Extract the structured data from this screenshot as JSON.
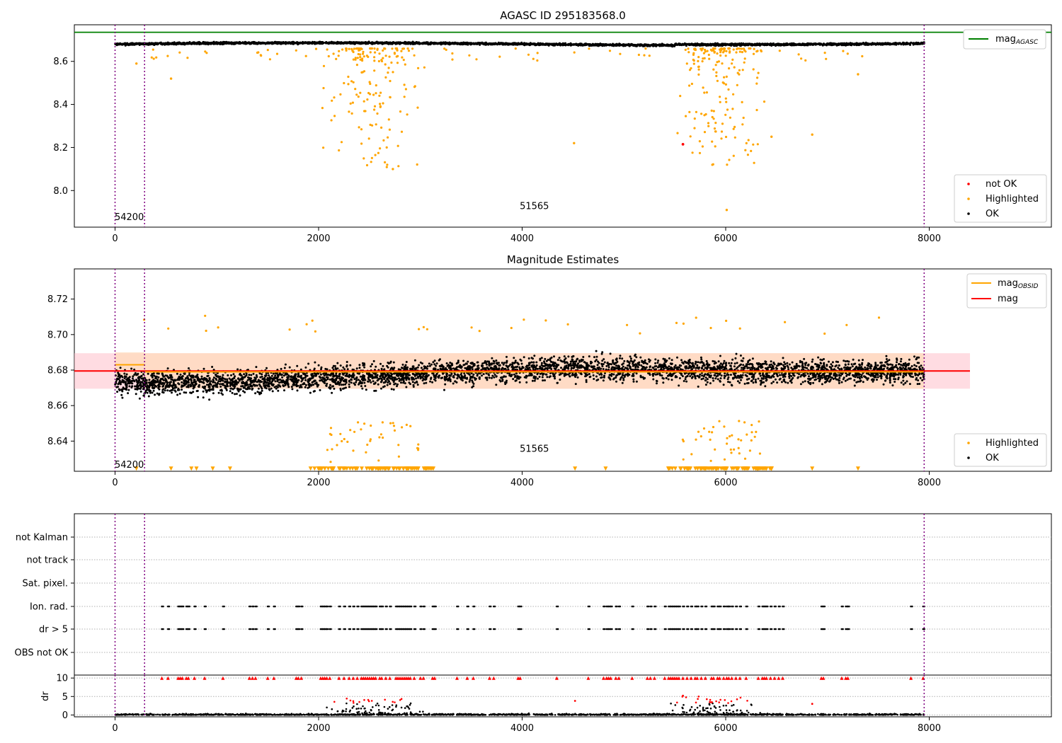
{
  "figure": {
    "title": "AGASC ID 295183568.0"
  },
  "colors": {
    "ok": "#000000",
    "highlighted": "#ffa500",
    "not_ok": "#ff0000",
    "mag_agasc": "#008000",
    "mag_obsid": "#ffa500",
    "mag": "#ff0000",
    "obsid_boundary": "#800080",
    "band_mag": "#ffc0cb",
    "band_obsid": "#ffdab9"
  },
  "chart_data": [
    {
      "type": "scatter",
      "title": "AGASC ID 295183568.0",
      "xlabel": "",
      "ylabel": "",
      "xlim": [
        -400,
        9200
      ],
      "ylim": [
        7.83,
        8.77
      ],
      "xticks": [
        "0",
        "2000",
        "4000",
        "6000",
        "8000"
      ],
      "yticks": [
        "8.0",
        "8.2",
        "8.4",
        "8.6"
      ],
      "mag_agasc": 8.735,
      "obsid_boundaries": [
        0,
        290,
        7950
      ],
      "obsid_labels": [
        {
          "text": "54200",
          "x": 140,
          "y": 7.88
        },
        {
          "text": "51565",
          "x": 4120,
          "y": 7.93
        }
      ],
      "ok_band": {
        "x_range": [
          0,
          7950
        ],
        "mag_min": 8.655,
        "mag_max": 8.705
      },
      "highlighted_clusters": [
        {
          "x_range": [
            1750,
            3300
          ],
          "mag_range": [
            8.1,
            8.66
          ]
        },
        {
          "x_range": [
            5300,
            6600
          ],
          "mag_range": [
            8.1,
            8.66
          ]
        }
      ],
      "highlighted_isolated": [
        {
          "x": 210,
          "y": 8.59
        },
        {
          "x": 550,
          "y": 8.52
        },
        {
          "x": 2730,
          "y": 8.1
        },
        {
          "x": 4510,
          "y": 8.22
        },
        {
          "x": 6010,
          "y": 7.91
        },
        {
          "x": 6450,
          "y": 8.25
        },
        {
          "x": 6850,
          "y": 8.26
        },
        {
          "x": 7300,
          "y": 8.54
        }
      ],
      "not_ok": [
        {
          "x": 5580,
          "y": 8.215
        }
      ],
      "legends": [
        {
          "position": "top-right",
          "entries": [
            "mag_AGASC"
          ]
        },
        {
          "position": "lower-right",
          "entries": [
            "not OK",
            "Highlighted",
            "OK"
          ]
        }
      ]
    },
    {
      "type": "scatter",
      "title": "Magnitude Estimates",
      "xlabel": "",
      "ylabel": "",
      "xlim": [
        -400,
        9200
      ],
      "ylim": [
        8.623,
        8.737
      ],
      "xticks": [
        "0",
        "2000",
        "4000",
        "6000",
        "8000"
      ],
      "yticks": [
        "8.64",
        "8.66",
        "8.68",
        "8.70",
        "8.72"
      ],
      "mag": 8.6795,
      "mag_band": [
        8.6695,
        8.6895
      ],
      "mag_obsid_segments": [
        {
          "x_range": [
            0,
            290
          ],
          "mag": 8.683,
          "band": [
            8.676,
            8.69
          ]
        },
        {
          "x_range": [
            290,
            7950
          ],
          "mag": 8.679,
          "band": [
            8.6695,
            8.6895
          ]
        }
      ],
      "obsid_boundaries": [
        0,
        290,
        7950
      ],
      "obsid_labels": [
        {
          "text": "54200",
          "x": 140,
          "y": 8.627
        },
        {
          "text": "51565",
          "x": 4120,
          "y": 8.636
        }
      ],
      "ok_band": {
        "x_range": [
          0,
          7950
        ],
        "mag_min": 8.65,
        "mag_max": 8.705
      },
      "off_scale_marker_y": 8.6245,
      "legends": [
        {
          "position": "top-right",
          "entries": [
            "mag_OBSID",
            "mag"
          ]
        },
        {
          "position": "lower-right",
          "entries": [
            "Highlighted",
            "OK"
          ]
        }
      ]
    },
    {
      "type": "scatter",
      "title": "",
      "xlabel": "",
      "ylabel": "",
      "xlim": [
        -400,
        9200
      ],
      "xticks": [
        "0",
        "2000",
        "4000",
        "6000",
        "8000"
      ],
      "flag_rows": [
        "not Kalman",
        "not track",
        "Sat. pixel.",
        "Ion. rad.",
        "dr > 5",
        "OBS not OK"
      ],
      "flag_x": [
        460,
        520,
        620,
        640,
        660,
        700,
        720,
        780,
        880,
        1060,
        1320,
        1350,
        1380,
        1500,
        1560,
        1780,
        1800,
        1830,
        2020,
        2040,
        2060,
        2080,
        2110,
        2200,
        2250,
        2300,
        2340,
        2380,
        2420,
        2440,
        2460,
        2480,
        2500,
        2520,
        2540,
        2560,
        2600,
        2620,
        2660,
        2700,
        2760,
        2780,
        2800,
        2820,
        2840,
        2860,
        2880,
        2900,
        2940,
        3000,
        3030,
        3120,
        3140,
        3360,
        3460,
        3520,
        3680,
        3720,
        3960,
        3980,
        4340,
        4650,
        4800,
        4830,
        4850,
        4870,
        4920,
        4950,
        5080,
        5230,
        5260,
        5300,
        5400,
        5440,
        5460,
        5480,
        5500,
        5520,
        5540,
        5580,
        5620,
        5660,
        5700,
        5720,
        5760,
        5800,
        5860,
        5880,
        5920,
        5940,
        5980,
        6010,
        6030,
        6060,
        6100,
        6140,
        6200,
        6320,
        6360,
        6380,
        6400,
        6440,
        6480,
        6520,
        6560,
        6940,
        6960,
        7140,
        7180,
        7200,
        7820,
        7940
      ]
    },
    {
      "type": "scatter",
      "title": "",
      "xlabel": "",
      "ylabel": "dr",
      "xlim": [
        -400,
        9200
      ],
      "ylim": [
        -0.5,
        10.8
      ],
      "yticks": [
        "0",
        "5",
        "10"
      ],
      "dr_cap": 10,
      "bumps": [
        {
          "x_range": [
            1900,
            3200
          ],
          "dr_max": 4.5
        },
        {
          "x_range": [
            5300,
            6500
          ],
          "dr_max": 5.0
        }
      ],
      "isolated": [
        {
          "x": 4520,
          "y": 3.8
        },
        {
          "x": 6850,
          "y": 3.0
        },
        {
          "x": 5580,
          "y": 5.2
        }
      ]
    }
  ],
  "legend_labels": {
    "mag_agasc": "mag",
    "mag_agasc_sub": "AGASC",
    "mag_obsid": "mag",
    "mag_obsid_sub": "OBSID",
    "mag": "mag",
    "not_ok": "not OK",
    "highlighted": "Highlighted",
    "ok": "OK"
  }
}
